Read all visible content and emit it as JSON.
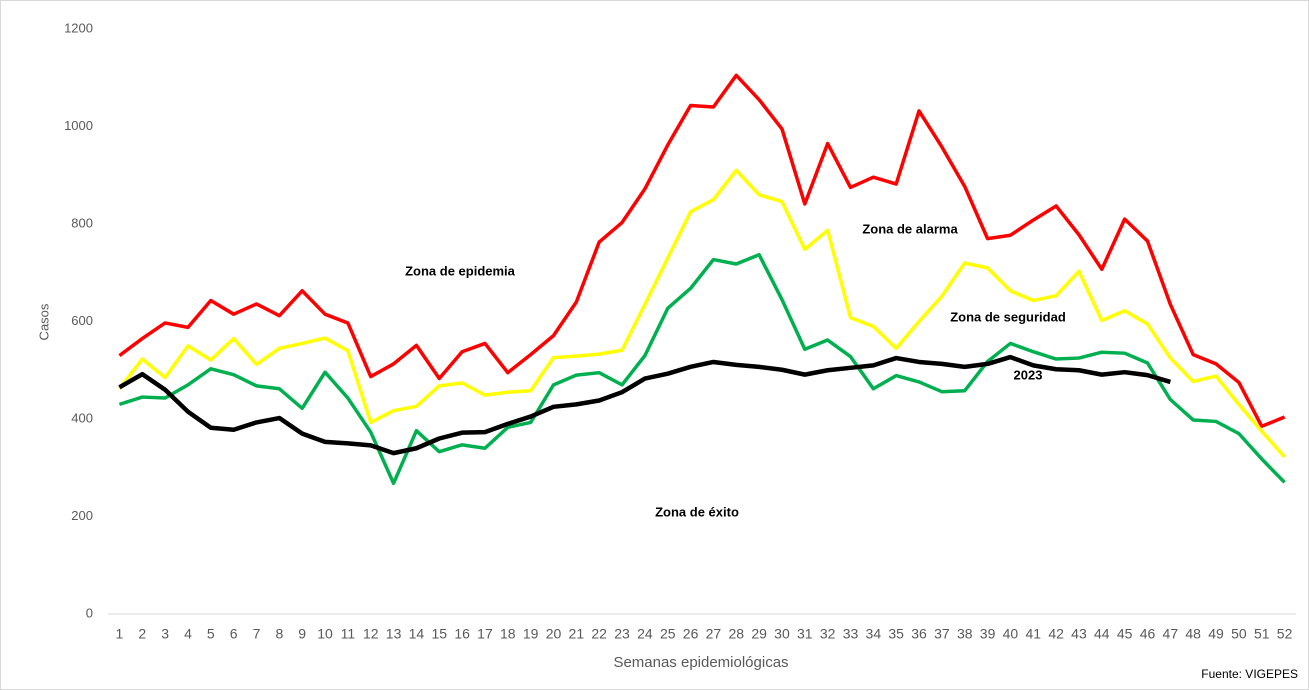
{
  "chart_data": {
    "type": "line",
    "y_label": "Casos",
    "x_label": "Semanas epidemiológicas",
    "source": "Fuente: VIGEPES",
    "annotations": [
      "Zona de epidemia",
      "Zona de alarma",
      "Zona de seguridad",
      "Zona de éxito"
    ],
    "categories": [
      1,
      2,
      3,
      4,
      5,
      6,
      7,
      8,
      9,
      10,
      11,
      12,
      13,
      14,
      15,
      16,
      17,
      18,
      19,
      20,
      21,
      22,
      23,
      24,
      25,
      26,
      27,
      28,
      29,
      30,
      31,
      32,
      33,
      34,
      35,
      36,
      37,
      38,
      39,
      40,
      41,
      42,
      43,
      44,
      45,
      46,
      47,
      48,
      49,
      50,
      51,
      52
    ],
    "ylim": [
      0,
      1200
    ],
    "yticks": [
      0,
      200,
      400,
      600,
      800,
      1000,
      1200
    ],
    "grid": false,
    "series": [
      {
        "color": "#ff0000",
        "values": [
          530,
          565,
          597,
          588,
          643,
          615,
          636,
          612,
          663,
          615,
          597,
          487,
          513,
          551,
          483,
          538,
          555,
          495,
          532,
          571,
          640,
          763,
          803,
          872,
          962,
          1043,
          1040,
          1105,
          1055,
          995,
          841,
          965,
          875,
          896,
          882,
          1032,
          958,
          877,
          770,
          777,
          808,
          837,
          778,
          707,
          810,
          765,
          635,
          532,
          513,
          475,
          385,
          404
        ]
      },
      {
        "color": "#ffff00",
        "values": [
          462,
          523,
          485,
          550,
          521,
          565,
          512,
          545,
          555,
          566,
          540,
          393,
          417,
          426,
          468,
          474,
          449,
          455,
          458,
          526,
          529,
          533,
          541,
          635,
          730,
          825,
          850,
          910,
          860,
          846,
          748,
          787,
          608,
          590,
          545,
          600,
          652,
          720,
          710,
          663,
          643,
          653,
          703,
          602,
          622,
          595,
          525,
          477,
          488,
          430,
          375,
          322
        ]
      },
      {
        "color": "#00b050",
        "values": [
          430,
          445,
          443,
          470,
          503,
          491,
          468,
          462,
          422,
          496,
          443,
          373,
          268,
          376,
          333,
          347,
          340,
          383,
          393,
          470,
          490,
          495,
          470,
          530,
          627,
          668,
          727,
          718,
          737,
          645,
          543,
          562,
          528,
          462,
          489,
          476,
          456,
          458,
          518,
          555,
          538,
          523,
          525,
          537,
          535,
          515,
          440,
          398,
          395,
          370,
          318,
          270
        ]
      },
      {
        "name": "2023",
        "color": "#000000",
        "values": [
          465,
          492,
          460,
          415,
          382,
          378,
          393,
          402,
          370,
          353,
          350,
          346,
          330,
          340,
          360,
          372,
          373,
          390,
          405,
          425,
          430,
          438,
          455,
          483,
          493,
          507,
          517,
          511,
          507,
          501,
          491,
          500,
          505,
          510,
          525,
          517,
          513,
          507,
          513,
          527,
          510,
          502,
          500,
          491,
          496,
          490,
          476,
          null,
          null,
          null,
          null,
          null
        ]
      }
    ]
  }
}
